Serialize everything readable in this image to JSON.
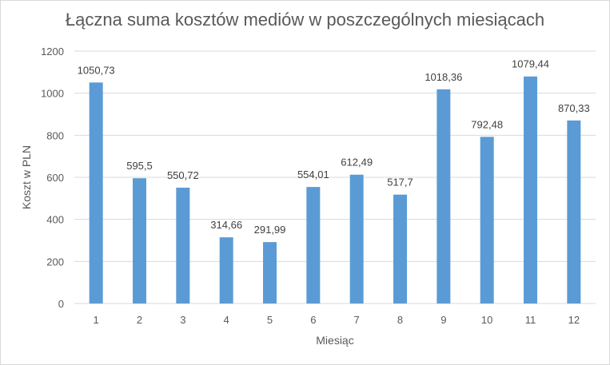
{
  "chart_data": {
    "type": "bar",
    "title": "Łączna suma kosztów mediów w poszczególnych miesiącach",
    "xlabel": "Miesiąc",
    "ylabel": "Koszt w PLN",
    "categories": [
      "1",
      "2",
      "3",
      "4",
      "5",
      "6",
      "7",
      "8",
      "9",
      "10",
      "11",
      "12"
    ],
    "values": [
      1050.73,
      595.5,
      550.72,
      314.66,
      291.99,
      554.01,
      612.49,
      517.7,
      1018.36,
      792.48,
      1079.44,
      870.33
    ],
    "data_labels": [
      "1050,73",
      "595,5",
      "550,72",
      "314,66",
      "291,99",
      "554,01",
      "612,49",
      "517,7",
      "1018,36",
      "792,48",
      "1079,44",
      "870,33"
    ],
    "y_ticks": [
      "0",
      "200",
      "400",
      "600",
      "800",
      "1000",
      "1200"
    ],
    "ylim": [
      0,
      1200
    ],
    "grid": true,
    "bar_color": "#5b9bd5",
    "gridline_color": "#d9d9d9"
  }
}
